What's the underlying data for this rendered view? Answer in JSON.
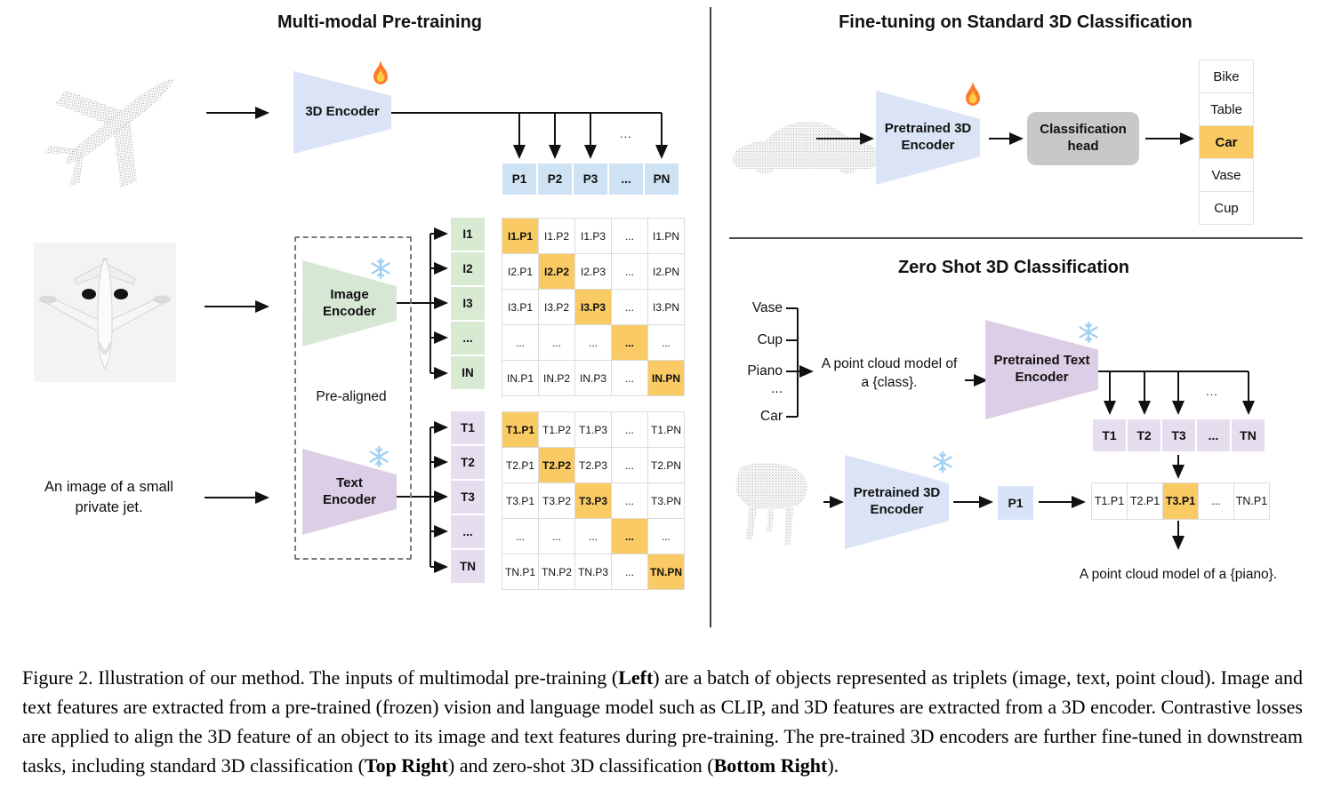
{
  "misc": {
    "ellipsis": "..."
  },
  "icons": {
    "trainable": "flame-icon",
    "frozen": "snowflake-icon"
  },
  "colors": {
    "highlight": "#FACB64",
    "cell_blue": "#CFE2F3",
    "cell_green": "#D9EAD3",
    "cell_purple": "#E6DEEF",
    "encoder_blue": "#DAE4F6",
    "encoder_green": "#D6E8D4",
    "encoder_purple": "#DCCEE6",
    "head_gray": "#C8C8C8"
  },
  "panels": {
    "pretrain": {
      "title": "Multi-modal Pre-training",
      "encoder3d_label": "3D Encoder",
      "image_encoder_label": "Image\nEncoder",
      "text_encoder_label": "Text\nEncoder",
      "prealigned_label": "Pre-aligned",
      "text_input": "An image of a small\nprivate jet.",
      "p_row": [
        "P1",
        "P2",
        "P3",
        "...",
        "PN"
      ],
      "i_col": [
        "I1",
        "I2",
        "I3",
        "...",
        "IN"
      ],
      "t_col": [
        "T1",
        "T2",
        "T3",
        "...",
        "TN"
      ],
      "i_matrix": [
        [
          "I1.P1",
          "I1.P2",
          "I1.P3",
          "...",
          "I1.PN"
        ],
        [
          "I2.P1",
          "I2.P2",
          "I2.P3",
          "...",
          "I2.PN"
        ],
        [
          "I3.P1",
          "I3.P2",
          "I3.P3",
          "...",
          "I3.PN"
        ],
        [
          "...",
          "...",
          "...",
          "...",
          "..."
        ],
        [
          "IN.P1",
          "IN.P2",
          "IN.P3",
          "...",
          "IN.PN"
        ]
      ],
      "t_matrix": [
        [
          "T1.P1",
          "T1.P2",
          "T1.P3",
          "...",
          "T1.PN"
        ],
        [
          "T2.P1",
          "T2.P2",
          "T2.P3",
          "...",
          "T2.PN"
        ],
        [
          "T3.P1",
          "T3.P2",
          "T3.P3",
          "...",
          "T3.PN"
        ],
        [
          "...",
          "...",
          "...",
          "...",
          "..."
        ],
        [
          "TN.P1",
          "TN.P2",
          "TN.P3",
          "...",
          "TN.PN"
        ]
      ]
    },
    "finetune": {
      "title": "Fine-tuning on Standard 3D Classification",
      "encoder_label": "Pretrained 3D\nEncoder",
      "head_label": "Classification\nhead",
      "classes": [
        "Bike",
        "Table",
        "Car",
        "Vase",
        "Cup"
      ],
      "highlighted_class": "Car"
    },
    "zeroshot": {
      "title": "Zero Shot 3D Classification",
      "classes": [
        "Vase",
        "Cup",
        "Piano",
        "...",
        "Car"
      ],
      "prompt": "A point cloud model of\na {class}.",
      "text_encoder_label": "Pretrained Text\nEncoder",
      "encoder3d_label": "Pretrained 3D\nEncoder",
      "t_row": [
        "T1",
        "T2",
        "T3",
        "...",
        "TN"
      ],
      "p_cell": "P1",
      "sim_row": [
        "T1.P1",
        "T2.P1",
        "T3.P1",
        "...",
        "TN.P1"
      ],
      "highlighted_sim": "T3.P1",
      "result_text": "A point cloud model of a {piano}."
    }
  },
  "caption": {
    "segments": [
      {
        "t": "Figure 2. Illustration of our method.  The inputs of multimodal pre-training (",
        "b": false
      },
      {
        "t": "Left",
        "b": true
      },
      {
        "t": ") are a batch of objects represented as triplets (image, text, point cloud).  Image and text features are extracted from a pre-trained (frozen) vision and language model such as CLIP, and 3D features are extracted from a 3D encoder.  Contrastive losses are applied to align the 3D feature of an object to its image and text features during pre-training.  The pre-trained 3D encoders are further fine-tuned in downstream tasks, including standard 3D classification (",
        "b": false
      },
      {
        "t": "Top Right",
        "b": true
      },
      {
        "t": ") and zero-shot 3D classification (",
        "b": false
      },
      {
        "t": "Bottom Right",
        "b": true
      },
      {
        "t": ").",
        "b": false
      }
    ]
  }
}
